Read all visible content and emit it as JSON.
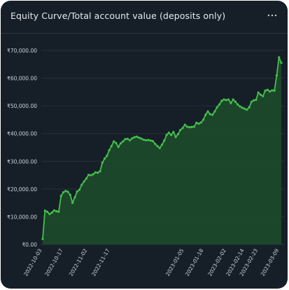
{
  "title": "Equity Curve/Total account value (deposits only)",
  "menu_icon": "more-horizontal-icon",
  "colors": {
    "background": "#161f28",
    "line": "#45c04d",
    "area": "#1d4a2a",
    "grid": "#26313b",
    "text": "#c9d2db"
  },
  "chart_data": {
    "type": "area",
    "title": "Equity Curve/Total account value (deposits only)",
    "xlabel": "",
    "ylabel": "",
    "grid": "horizontal",
    "legend": "none",
    "ylim": [
      0,
      70000
    ],
    "y_ticks": [
      0,
      10000,
      20000,
      30000,
      40000,
      50000,
      60000,
      70000
    ],
    "y_tick_labels": [
      "₹0.00",
      "₹10,000.00",
      "₹20,000.00",
      "₹30,000.00",
      "₹40,000.00",
      "₹50,000.00",
      "₹60,000.00",
      "₹70,000.00"
    ],
    "x_range": [
      "2022-10-03",
      "2023-03-11"
    ],
    "x_ticks": [
      "2022-10-03",
      "2022-10-17",
      "2022-11-02",
      "2022-11-17",
      "2023-01-05",
      "2023-01-18",
      "2023-02-02",
      "2023-02-14",
      "2023-02-23",
      "2023-03-09"
    ],
    "series": [
      {
        "values": [
          2000,
          12200,
          11800,
          11000,
          11500,
          12300,
          12000,
          11800,
          17500,
          18800,
          19300,
          19000,
          17900,
          15000,
          17000,
          19100,
          19700,
          21500,
          22700,
          23800,
          25100,
          25000,
          25300,
          26000,
          25900,
          26400,
          29500,
          31000,
          32000,
          34000,
          35500,
          37200,
          36600,
          35200,
          36500,
          37200,
          38000,
          38100,
          37600,
          38300,
          38700,
          38900,
          38500,
          38200,
          37800,
          37600,
          37700,
          37500,
          37300,
          36300,
          35500,
          34800,
          36000,
          37500,
          39500,
          40300,
          39500,
          40600,
          38800,
          39800,
          41300,
          42000,
          43200,
          42500,
          42300,
          42400,
          42500,
          43900,
          43600,
          44000,
          45000,
          46800,
          48000,
          47000,
          46800,
          48000,
          49500,
          50500,
          51800,
          52300,
          52100,
          52300,
          51000,
          52300,
          51500,
          50500,
          49800,
          49300,
          49000,
          48600,
          49500,
          51500,
          52000,
          52200,
          54800,
          54000,
          53500,
          55500,
          55800,
          55200,
          55600,
          55500,
          61000,
          67500,
          65500
        ]
      }
    ]
  }
}
